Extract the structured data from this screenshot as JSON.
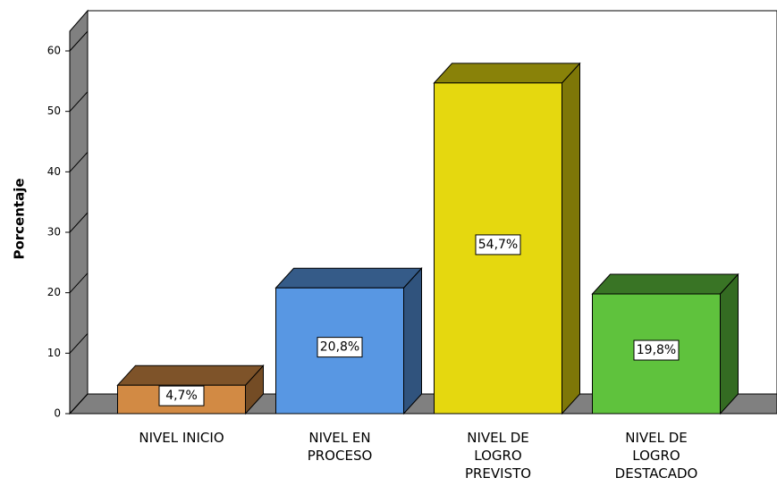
{
  "chart_data": {
    "type": "bar3d",
    "y_label": "Porcentaje",
    "categories": [
      "NIVEL INICIO",
      "NIVEL EN PROCESO",
      "NIVEL DE LOGRO PREVISTO",
      "NIVEL DE LOGRO DESTACADO"
    ],
    "values": [
      4.7,
      20.8,
      54.7,
      19.8
    ],
    "value_labels": [
      "4,7%",
      "20,8%",
      "54,7%",
      "19,8%"
    ],
    "colors": [
      "#d28a44",
      "#5897e3",
      "#e5d80f",
      "#5fc23d"
    ],
    "ylim": [
      0,
      60
    ],
    "yticks": [
      0,
      10,
      20,
      30,
      40,
      50,
      60
    ],
    "grid": false
  }
}
